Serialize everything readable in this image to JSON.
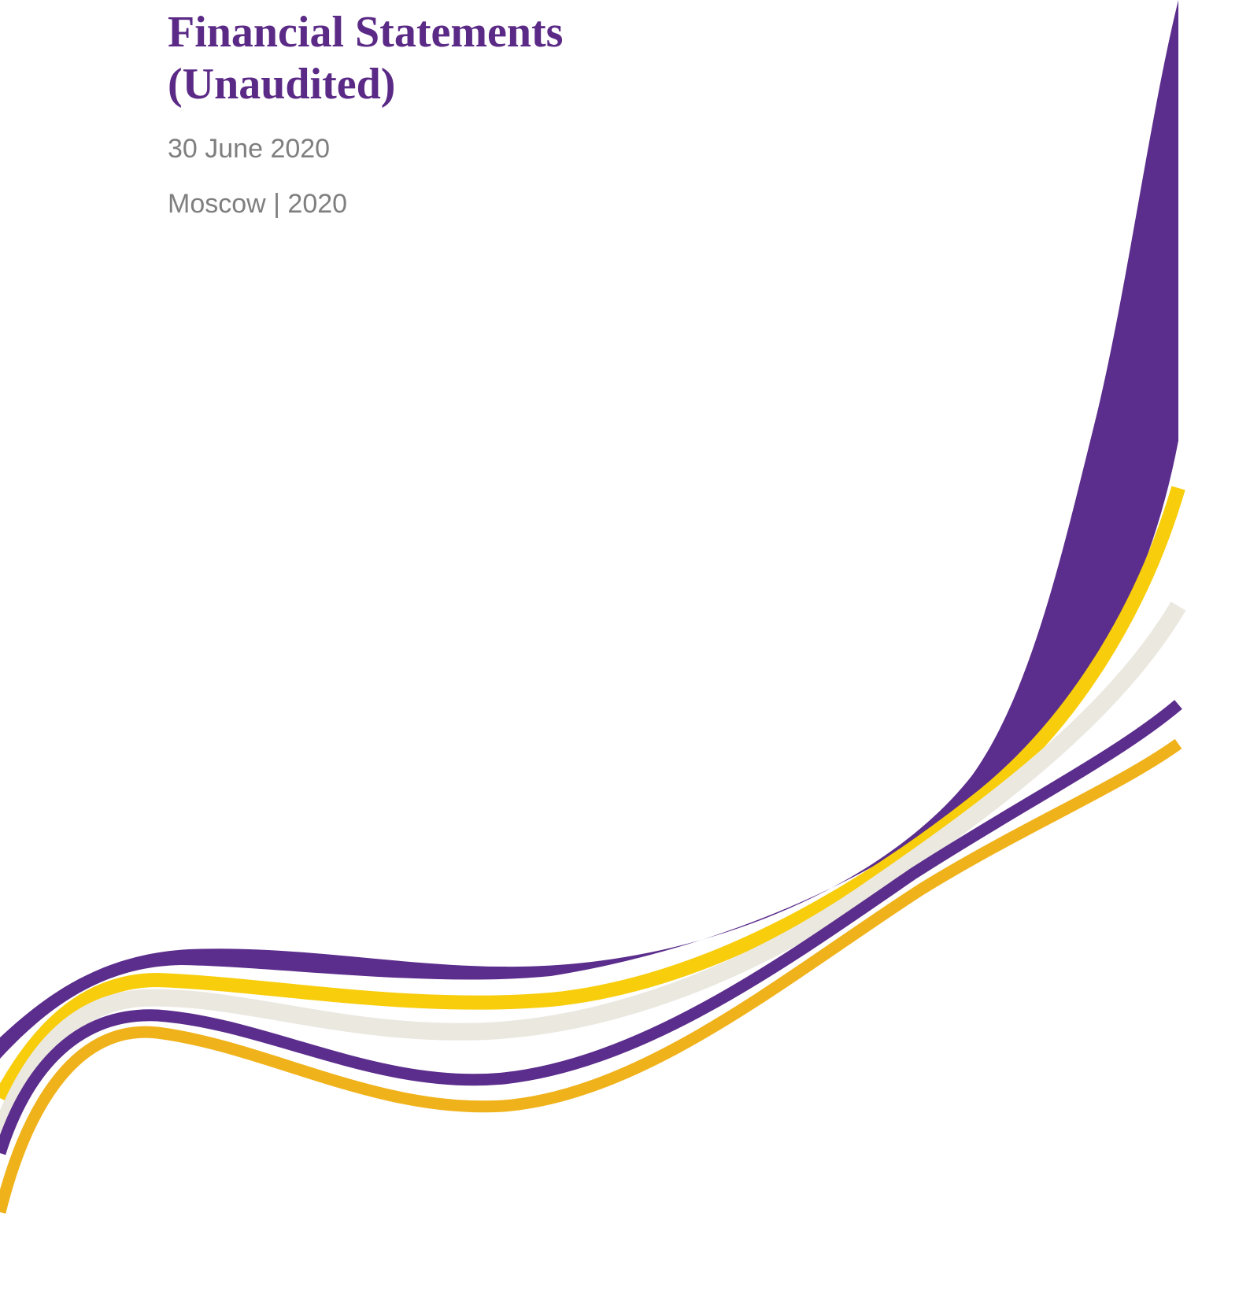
{
  "header": {
    "title_lines": [
      "Financial Statements",
      "(Unaudited)"
    ],
    "date": "30 June 2020",
    "location": "Moscow | 2020"
  }
}
